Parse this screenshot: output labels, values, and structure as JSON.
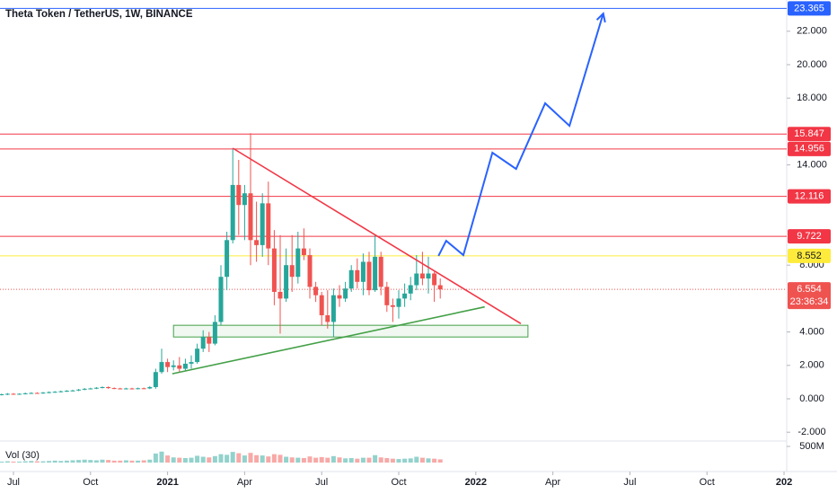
{
  "chart_data": {
    "type": "candlestick",
    "title": "Theta Token / TetherUS, 1W, BINANCE",
    "xlim": [
      -2.27,
      130.45
    ],
    "xticks": [
      {
        "value": 0,
        "label": "Jul"
      },
      {
        "value": 13,
        "label": "Oct"
      },
      {
        "value": 26,
        "label": "2021"
      },
      {
        "value": 39,
        "label": "Apr"
      },
      {
        "value": 52,
        "label": "Jul"
      },
      {
        "value": 65,
        "label": "Oct"
      },
      {
        "value": 78,
        "label": "2022"
      },
      {
        "value": 91,
        "label": "Apr"
      },
      {
        "value": 104,
        "label": "Jul"
      },
      {
        "value": 117,
        "label": "Oct"
      },
      {
        "value": 130,
        "label": "202"
      }
    ],
    "ylim": [
      -2.473,
      23.871
    ],
    "yticks": [
      {
        "value": -2,
        "label": "-2.000"
      },
      {
        "value": 0,
        "label": "0.000"
      },
      {
        "value": 2,
        "label": "2.000"
      },
      {
        "value": 4,
        "label": "4.000"
      },
      {
        "value": 8,
        "label": "8.000"
      },
      {
        "value": 14,
        "label": "14.000"
      },
      {
        "value": 18,
        "label": "18.000"
      },
      {
        "value": 20,
        "label": "20.000"
      },
      {
        "value": 22,
        "label": "22.000"
      }
    ],
    "up_color": "#26a69a",
    "down_color": "#ef5350",
    "x": [
      -2,
      -1,
      0,
      1,
      2,
      3,
      4,
      5,
      6,
      7,
      8,
      9,
      10,
      11,
      12,
      13,
      14,
      15,
      16,
      17,
      18,
      19,
      20,
      21,
      22,
      23,
      24,
      25,
      26,
      27,
      28,
      29,
      30,
      31,
      32,
      33,
      34,
      35,
      36,
      37,
      38,
      39,
      40,
      41,
      42,
      43,
      44,
      45,
      46,
      47,
      48,
      49,
      50,
      51,
      52,
      53,
      54,
      55,
      56,
      57,
      58,
      59,
      60,
      61,
      62,
      63,
      64,
      65,
      66,
      67,
      68,
      69,
      70,
      71,
      72
    ],
    "open": [
      0.25,
      0.27,
      0.3,
      0.28,
      0.3,
      0.33,
      0.35,
      0.34,
      0.37,
      0.4,
      0.42,
      0.45,
      0.48,
      0.5,
      0.55,
      0.6,
      0.62,
      0.66,
      0.7,
      0.64,
      0.62,
      0.6,
      0.62,
      0.6,
      0.63,
      0.62,
      0.7,
      1.6,
      2.2,
      1.9,
      2.0,
      1.8,
      2.1,
      2.2,
      3.0,
      3.7,
      3.3,
      4.6,
      7.3,
      9.5,
      12.8,
      11.6,
      12.3,
      9.5,
      9.2,
      11.7,
      9.0,
      6.4,
      6.0,
      8.0,
      7.3,
      9.0,
      8.6,
      6.7,
      6.2,
      5.0,
      4.6,
      6.2,
      6.0,
      6.6,
      7.7,
      7.0,
      8.2,
      6.5,
      8.5,
      6.7,
      5.6,
      5.5,
      6.0,
      6.3,
      6.8,
      7.5,
      7.2,
      7.5,
      6.8
    ],
    "high": [
      0.31,
      0.34,
      0.34,
      0.33,
      0.37,
      0.39,
      0.39,
      0.41,
      0.44,
      0.46,
      0.49,
      0.52,
      0.54,
      0.59,
      0.64,
      0.66,
      0.7,
      0.74,
      0.74,
      0.68,
      0.66,
      0.66,
      0.66,
      0.67,
      0.67,
      0.76,
      1.8,
      3.0,
      2.4,
      2.3,
      2.5,
      2.4,
      2.6,
      3.3,
      4.1,
      4.0,
      5.0,
      8.0,
      10.0,
      15.0,
      14.3,
      12.8,
      15.9,
      11.8,
      12.3,
      13.0,
      10.1,
      9.8,
      9.0,
      9.8,
      10.0,
      10.2,
      9.0,
      7.0,
      6.4,
      6.5,
      6.6,
      6.8,
      7.0,
      8.0,
      8.4,
      8.7,
      8.8,
      9.8,
      8.8,
      7.0,
      6.0,
      6.5,
      6.9,
      7.3,
      8.6,
      8.8,
      8.5,
      7.6,
      7.2
    ],
    "low": [
      0.2,
      0.22,
      0.24,
      0.24,
      0.26,
      0.29,
      0.3,
      0.3,
      0.33,
      0.36,
      0.38,
      0.41,
      0.44,
      0.46,
      0.51,
      0.56,
      0.58,
      0.62,
      0.6,
      0.58,
      0.56,
      0.56,
      0.56,
      0.56,
      0.58,
      0.58,
      0.6,
      1.5,
      1.6,
      1.7,
      1.6,
      1.7,
      1.8,
      2.1,
      2.8,
      2.8,
      3.2,
      4.4,
      6.5,
      9.3,
      9.8,
      9.5,
      8.0,
      8.2,
      8.5,
      8.0,
      5.6,
      3.9,
      5.8,
      6.4,
      6.9,
      8.3,
      6.0,
      5.8,
      4.4,
      4.2,
      3.7,
      5.5,
      5.8,
      6.4,
      6.6,
      6.2,
      6.2,
      6.4,
      6.2,
      5.2,
      4.6,
      4.8,
      5.5,
      5.9,
      6.5,
      6.8,
      6.3,
      5.8,
      6.0
    ],
    "close": [
      0.27,
      0.3,
      0.28,
      0.3,
      0.33,
      0.35,
      0.34,
      0.37,
      0.4,
      0.42,
      0.45,
      0.48,
      0.5,
      0.55,
      0.6,
      0.62,
      0.66,
      0.7,
      0.64,
      0.62,
      0.6,
      0.62,
      0.6,
      0.63,
      0.62,
      0.7,
      1.6,
      2.2,
      1.9,
      2.0,
      1.8,
      2.1,
      2.2,
      3.0,
      3.7,
      3.3,
      4.6,
      7.3,
      9.5,
      12.8,
      11.6,
      12.3,
      9.5,
      9.2,
      11.7,
      9.0,
      6.4,
      6.0,
      8.0,
      7.3,
      9.0,
      8.6,
      6.7,
      6.2,
      5.0,
      4.6,
      6.2,
      6.0,
      6.6,
      7.7,
      7.0,
      8.2,
      6.5,
      8.5,
      6.7,
      5.6,
      5.5,
      6.0,
      6.3,
      6.8,
      7.5,
      7.2,
      7.5,
      6.8,
      6.554
    ],
    "volume_title": "Vol (30)",
    "volume_ylim": [
      0,
      640000000
    ],
    "volume_yticks": [
      {
        "value": 500000000,
        "label": "500M"
      }
    ],
    "volume": [
      30000000.0,
      40000000.0,
      30000000.0,
      30000000.0,
      40000000.0,
      50000000.0,
      40000000.0,
      40000000.0,
      50000000.0,
      60000000.0,
      50000000.0,
      60000000.0,
      70000000.0,
      80000000.0,
      90000000.0,
      80000000.0,
      70000000.0,
      90000000.0,
      80000000.0,
      60000000.0,
      60000000.0,
      70000000.0,
      60000000.0,
      60000000.0,
      70000000.0,
      90000000.0,
      280000000.0,
      340000000.0,
      220000000.0,
      160000000.0,
      150000000.0,
      140000000.0,
      150000000.0,
      210000000.0,
      180000000.0,
      160000000.0,
      200000000.0,
      260000000.0,
      240000000.0,
      330000000.0,
      290000000.0,
      220000000.0,
      300000000.0,
      230000000.0,
      220000000.0,
      190000000.0,
      260000000.0,
      240000000.0,
      180000000.0,
      160000000.0,
      150000000.0,
      140000000.0,
      190000000.0,
      150000000.0,
      170000000.0,
      150000000.0,
      200000000.0,
      160000000.0,
      130000000.0,
      140000000.0,
      120000000.0,
      150000000.0,
      150000000.0,
      230000000.0,
      160000000.0,
      140000000.0,
      120000000.0,
      110000000.0,
      120000000.0,
      130000000.0,
      180000000.0,
      150000000.0,
      130000000.0,
      120000000.0,
      100000000.0
    ],
    "levels": [
      {
        "value": 23.365,
        "color": "#2962ff",
        "style": "solid"
      },
      {
        "value": 15.847,
        "color": "#f23645",
        "style": "solid"
      },
      {
        "value": 14.956,
        "color": "#f23645",
        "style": "solid"
      },
      {
        "value": 12.116,
        "color": "#f23645",
        "style": "solid"
      },
      {
        "value": 9.722,
        "color": "#f23645",
        "style": "solid"
      },
      {
        "value": 8.552,
        "color": "#ffeb3b",
        "style": "solid"
      },
      {
        "value": 6.554,
        "color": "#ef5350",
        "style": "dotted",
        "countdown": "23:36:34"
      }
    ],
    "trendlines": [
      {
        "color": "#f23645",
        "x": [
          37,
          85.6
        ],
        "y": [
          15.0,
          4.5
        ]
      },
      {
        "color": "#43a047",
        "x": [
          26.8,
          79.5
        ],
        "y": [
          1.5,
          5.5
        ]
      }
    ],
    "zone": {
      "color": "#43a047",
      "x": [
        27,
        86.8
      ],
      "y": [
        3.7,
        4.4
      ]
    },
    "projection": {
      "color": "#2962ff",
      "x": [
        71.7,
        73.0,
        75.9,
        80.8,
        84.8,
        89.7,
        93.8,
        99.5
      ],
      "y": [
        8.55,
        9.46,
        8.6,
        14.73,
        13.76,
        17.69,
        16.34,
        23.06
      ]
    }
  }
}
